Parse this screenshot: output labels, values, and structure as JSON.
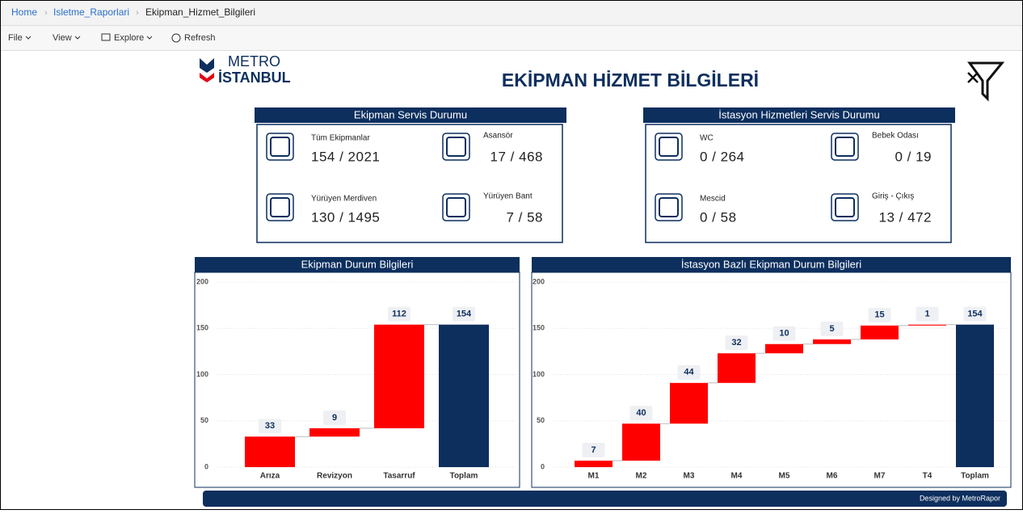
{
  "breadcrumb": [
    "Home",
    "Isletme_Raporlari",
    "Ekipman_Hizmet_Bilgileri"
  ],
  "toolbar": [
    "File",
    "View",
    "Explore",
    "Refresh"
  ],
  "header": {
    "logo_top": "METRO",
    "logo_bottom": "İSTANBUL",
    "title": "EKİPMAN HİZMET BİLGİLERİ"
  },
  "panels": [
    {
      "title": "Ekipman Servis Durumu",
      "items": [
        {
          "label": "Tüm Ekipmanlar",
          "value": "154 / 2021"
        },
        {
          "label": "Asansör",
          "value": "17 / 468"
        },
        {
          "label": "Yürüyen Merdiven",
          "value": "130 / 1495"
        },
        {
          "label": "Yürüyen Bant",
          "value": "7 / 58"
        }
      ]
    },
    {
      "title": "İstasyon Hizmetleri Servis Durumu",
      "items": [
        {
          "label": "WC",
          "value": "0 / 264"
        },
        {
          "label": "Bebek Odası",
          "value": "0 / 19"
        },
        {
          "label": "Mescid",
          "value": "0 / 58"
        },
        {
          "label": "Giriş - Çıkış",
          "value": "13 / 472"
        }
      ]
    }
  ],
  "chart_data": [
    {
      "type": "waterfall",
      "title": "Ekipman Durum Bilgileri",
      "categories": [
        "Arıza",
        "Revizyon",
        "Tasarruf",
        "Toplam"
      ],
      "values": [
        33,
        9,
        112,
        154
      ],
      "color": "#ff0000",
      "total_color": "#0d2f5e",
      "ylim": [
        0,
        200
      ],
      "yticks": [
        0,
        50,
        100,
        150,
        200
      ],
      "grid": true
    },
    {
      "type": "waterfall",
      "title": "İstasyon Bazlı Ekipman Durum Bilgileri",
      "categories": [
        "M1",
        "M2",
        "M3",
        "M4",
        "M5",
        "M6",
        "M7",
        "T4",
        "Toplam"
      ],
      "values": [
        7,
        40,
        44,
        32,
        10,
        5,
        15,
        1,
        154
      ],
      "color": "#ff0000",
      "total_color": "#0d2f5e",
      "ylim": [
        0,
        200
      ],
      "yticks": [
        0,
        50,
        100,
        150,
        200
      ],
      "grid": true
    }
  ],
  "footer": "Designed by MetroRapor"
}
